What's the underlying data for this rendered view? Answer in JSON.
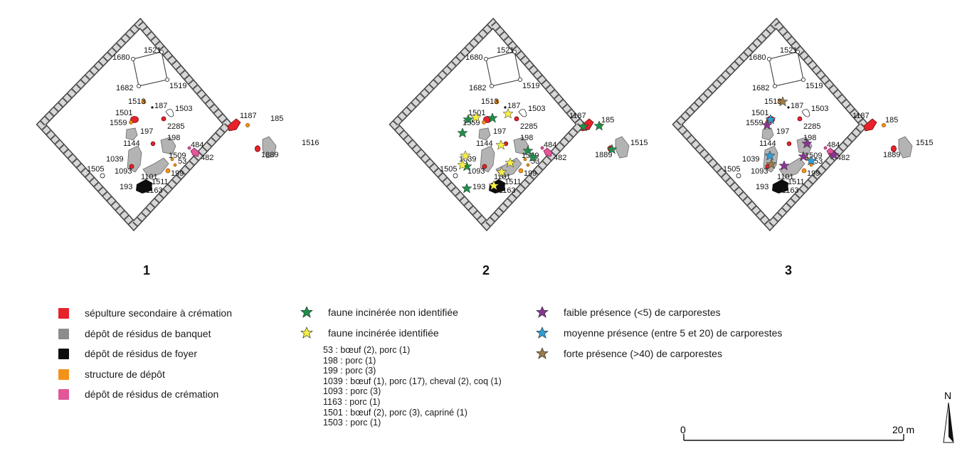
{
  "panels": [
    {
      "number": "1",
      "features": [
        "1521",
        "1680",
        "1519",
        "1682",
        "1513",
        "187",
        "1503",
        "1501",
        "2285",
        "1559",
        "197",
        "198",
        "1144",
        "1509",
        "482",
        "484",
        "53",
        "1039",
        "1093",
        "199",
        "1505",
        "1101",
        "1511",
        "193",
        "1163"
      ]
    },
    {
      "number": "2",
      "features": [
        "1521",
        "1680",
        "1519",
        "1682",
        "1513",
        "187",
        "1503",
        "1501",
        "2285",
        "1559",
        "197",
        "198",
        "1144",
        "1509",
        "482",
        "484",
        "53",
        "1039",
        "1093",
        "199",
        "1505",
        "1101",
        "1511",
        "193",
        "1163"
      ]
    },
    {
      "number": "3",
      "features": [
        "1521",
        "1680",
        "1519",
        "1682",
        "1513",
        "187",
        "1503",
        "1501",
        "2285",
        "1559",
        "197",
        "198",
        "1144",
        "1509",
        "482",
        "484",
        "53",
        "1039",
        "1093",
        "199",
        "1505",
        "1101",
        "1511",
        "193",
        "1163"
      ]
    }
  ],
  "outside_labels": {
    "p1": [
      "1187",
      "185",
      "1516",
      "1889"
    ],
    "p2": [
      "1187",
      "185",
      "1515",
      "1889"
    ],
    "p3": [
      "1187",
      "185",
      "1515",
      "1889"
    ]
  },
  "colors": {
    "cremation_burial": "#e8222a",
    "banquet": "#8c8c8c",
    "banquet_fill": "#b3b3b3",
    "hearth": "#0d0d0d",
    "deposit_structure": "#f39219",
    "cremation_residue": "#e2569a",
    "star_green": "#1f8e4a",
    "star_yellow": "#f6ee43",
    "star_purple": "#8a3591",
    "star_blue": "#2f9ed6",
    "star_brown": "#9a7b4d"
  },
  "legend_features": [
    {
      "label": "sépulture secondaire à crémation",
      "color": "#e8222a"
    },
    {
      "label": "dépôt de résidus de banquet",
      "color": "#8c8c8c"
    },
    {
      "label": "dépôt de résidus de foyer",
      "color": "#0d0d0d"
    },
    {
      "label": "structure de dépôt",
      "color": "#f39219"
    },
    {
      "label": "dépôt de résidus de crémation",
      "color": "#e2569a"
    }
  ],
  "legend_fauna": [
    {
      "label": "faune incinérée non identifiée",
      "icon": "green-star-icon"
    },
    {
      "label": "faune incinérée identifiée",
      "icon": "yellow-star-icon"
    }
  ],
  "fauna_notes": [
    "53 : bœuf (2), porc (1)",
    "198 : porc (1)",
    "199 : porc (3)",
    "1039 : bœuf (1), porc (17), cheval (2), coq (1)",
    "1093 : porc (3)",
    "1163 : porc (1)",
    "1501 : bœuf (2), porc (3), capriné (1)",
    "1503 : porc (1)"
  ],
  "legend_carpo": [
    {
      "label": "faible présence (<5) de carporestes",
      "icon": "purple-star-icon"
    },
    {
      "label": "moyenne présence (entre 5 et 20) de carporestes",
      "icon": "blue-star-icon"
    },
    {
      "label": "forte présence (>40) de carporestes",
      "icon": "brown-star-icon"
    }
  ],
  "scale": {
    "start": "0",
    "end": "20 m"
  },
  "north": "N"
}
